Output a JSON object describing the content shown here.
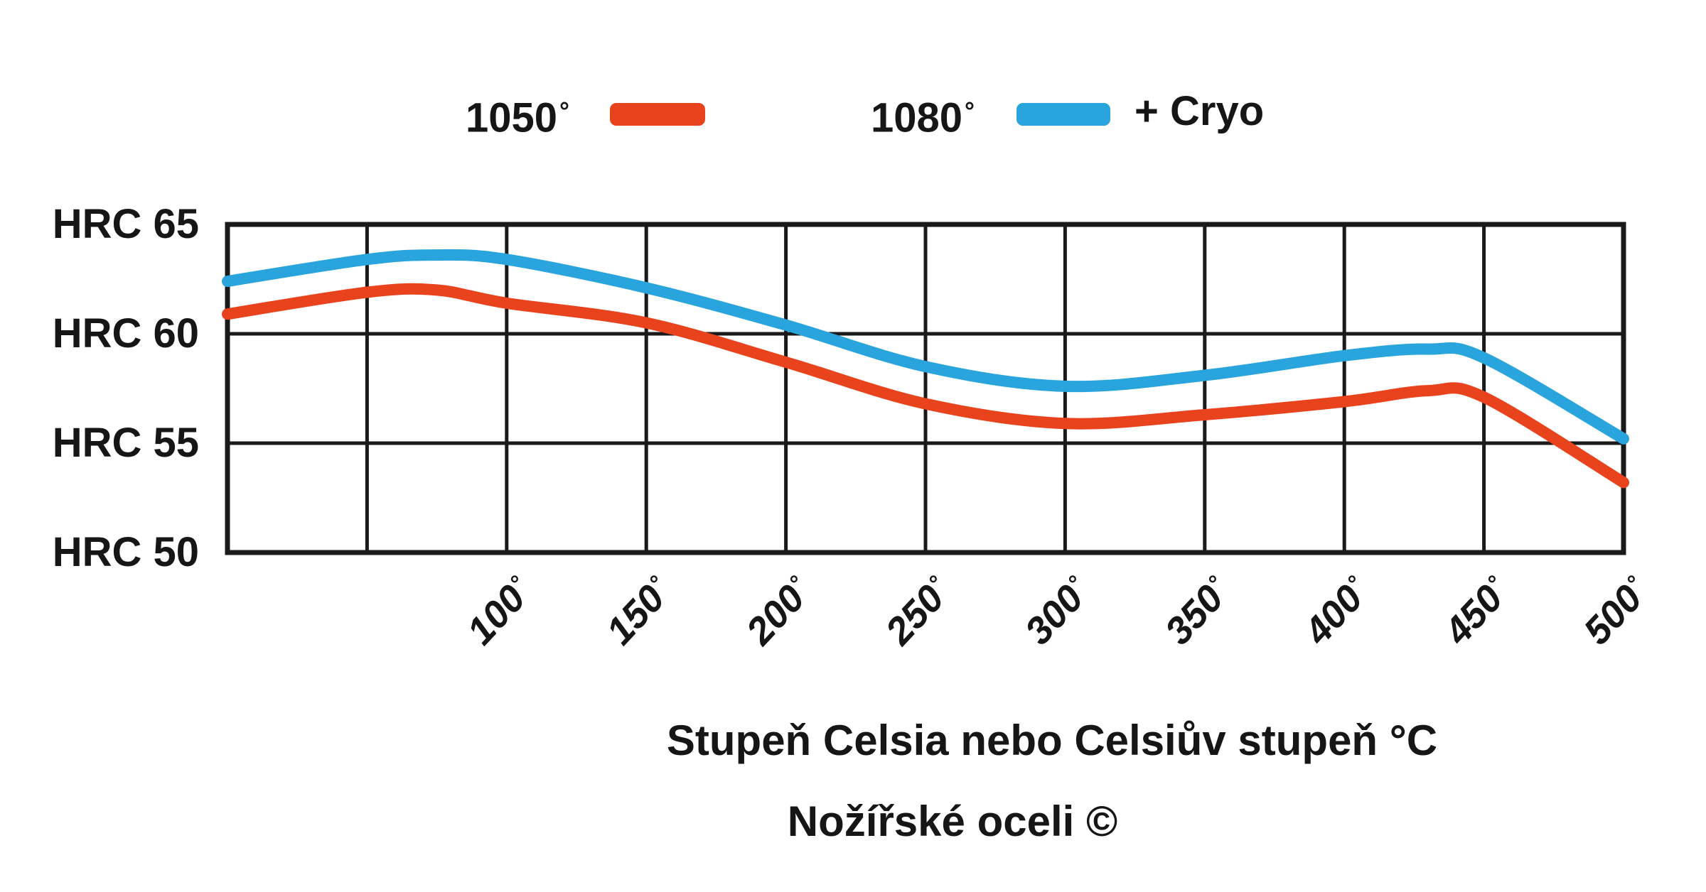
{
  "chart_data": {
    "type": "line",
    "title": "",
    "xlabel": "Stupeň Celsia nebo Celsiův stupeň °C",
    "caption": "Nožířské oceli ©",
    "xlim": [
      0,
      500
    ],
    "ylim": [
      50,
      65
    ],
    "grid": true,
    "x_grid_step": 50,
    "y_grid_step": 5,
    "legend_position": "top",
    "x": [
      0,
      50,
      75,
      100,
      150,
      200,
      250,
      300,
      350,
      400,
      430,
      450,
      500
    ],
    "series": [
      {
        "name": "1050°",
        "color": "#e8431c",
        "values": [
          60.9,
          61.9,
          62.0,
          61.4,
          60.5,
          58.7,
          56.8,
          55.9,
          56.3,
          56.9,
          57.4,
          57.1,
          53.2
        ]
      },
      {
        "name": "1080° + Cryo",
        "color": "#29a4dc",
        "values": [
          62.4,
          63.4,
          63.6,
          63.4,
          62.1,
          60.4,
          58.5,
          57.6,
          58.1,
          59.0,
          59.3,
          58.9,
          55.2
        ]
      }
    ],
    "x_tick_values": [
      100,
      150,
      200,
      250,
      300,
      350,
      400,
      450,
      500
    ],
    "x_tick_labels": [
      "100",
      "150",
      "200",
      "250",
      "300",
      "350",
      "400",
      "450",
      "500"
    ],
    "x_tick_suffix": "°",
    "y_tick_values": [
      65,
      60,
      55,
      50
    ],
    "y_tick_labels": [
      "HRC 65",
      "HRC 60",
      "HRC 55",
      "HRC 50"
    ]
  },
  "legend": {
    "series1_label": "1050",
    "series1_degree": "°",
    "series2_label": "1080",
    "series2_degree": "°",
    "cryo_label": "+ Cryo"
  },
  "colors": {
    "red": "#e8431c",
    "blue": "#29a4dc",
    "grid": "#1a1a1a",
    "text": "#161616",
    "background": "#ffffff"
  }
}
